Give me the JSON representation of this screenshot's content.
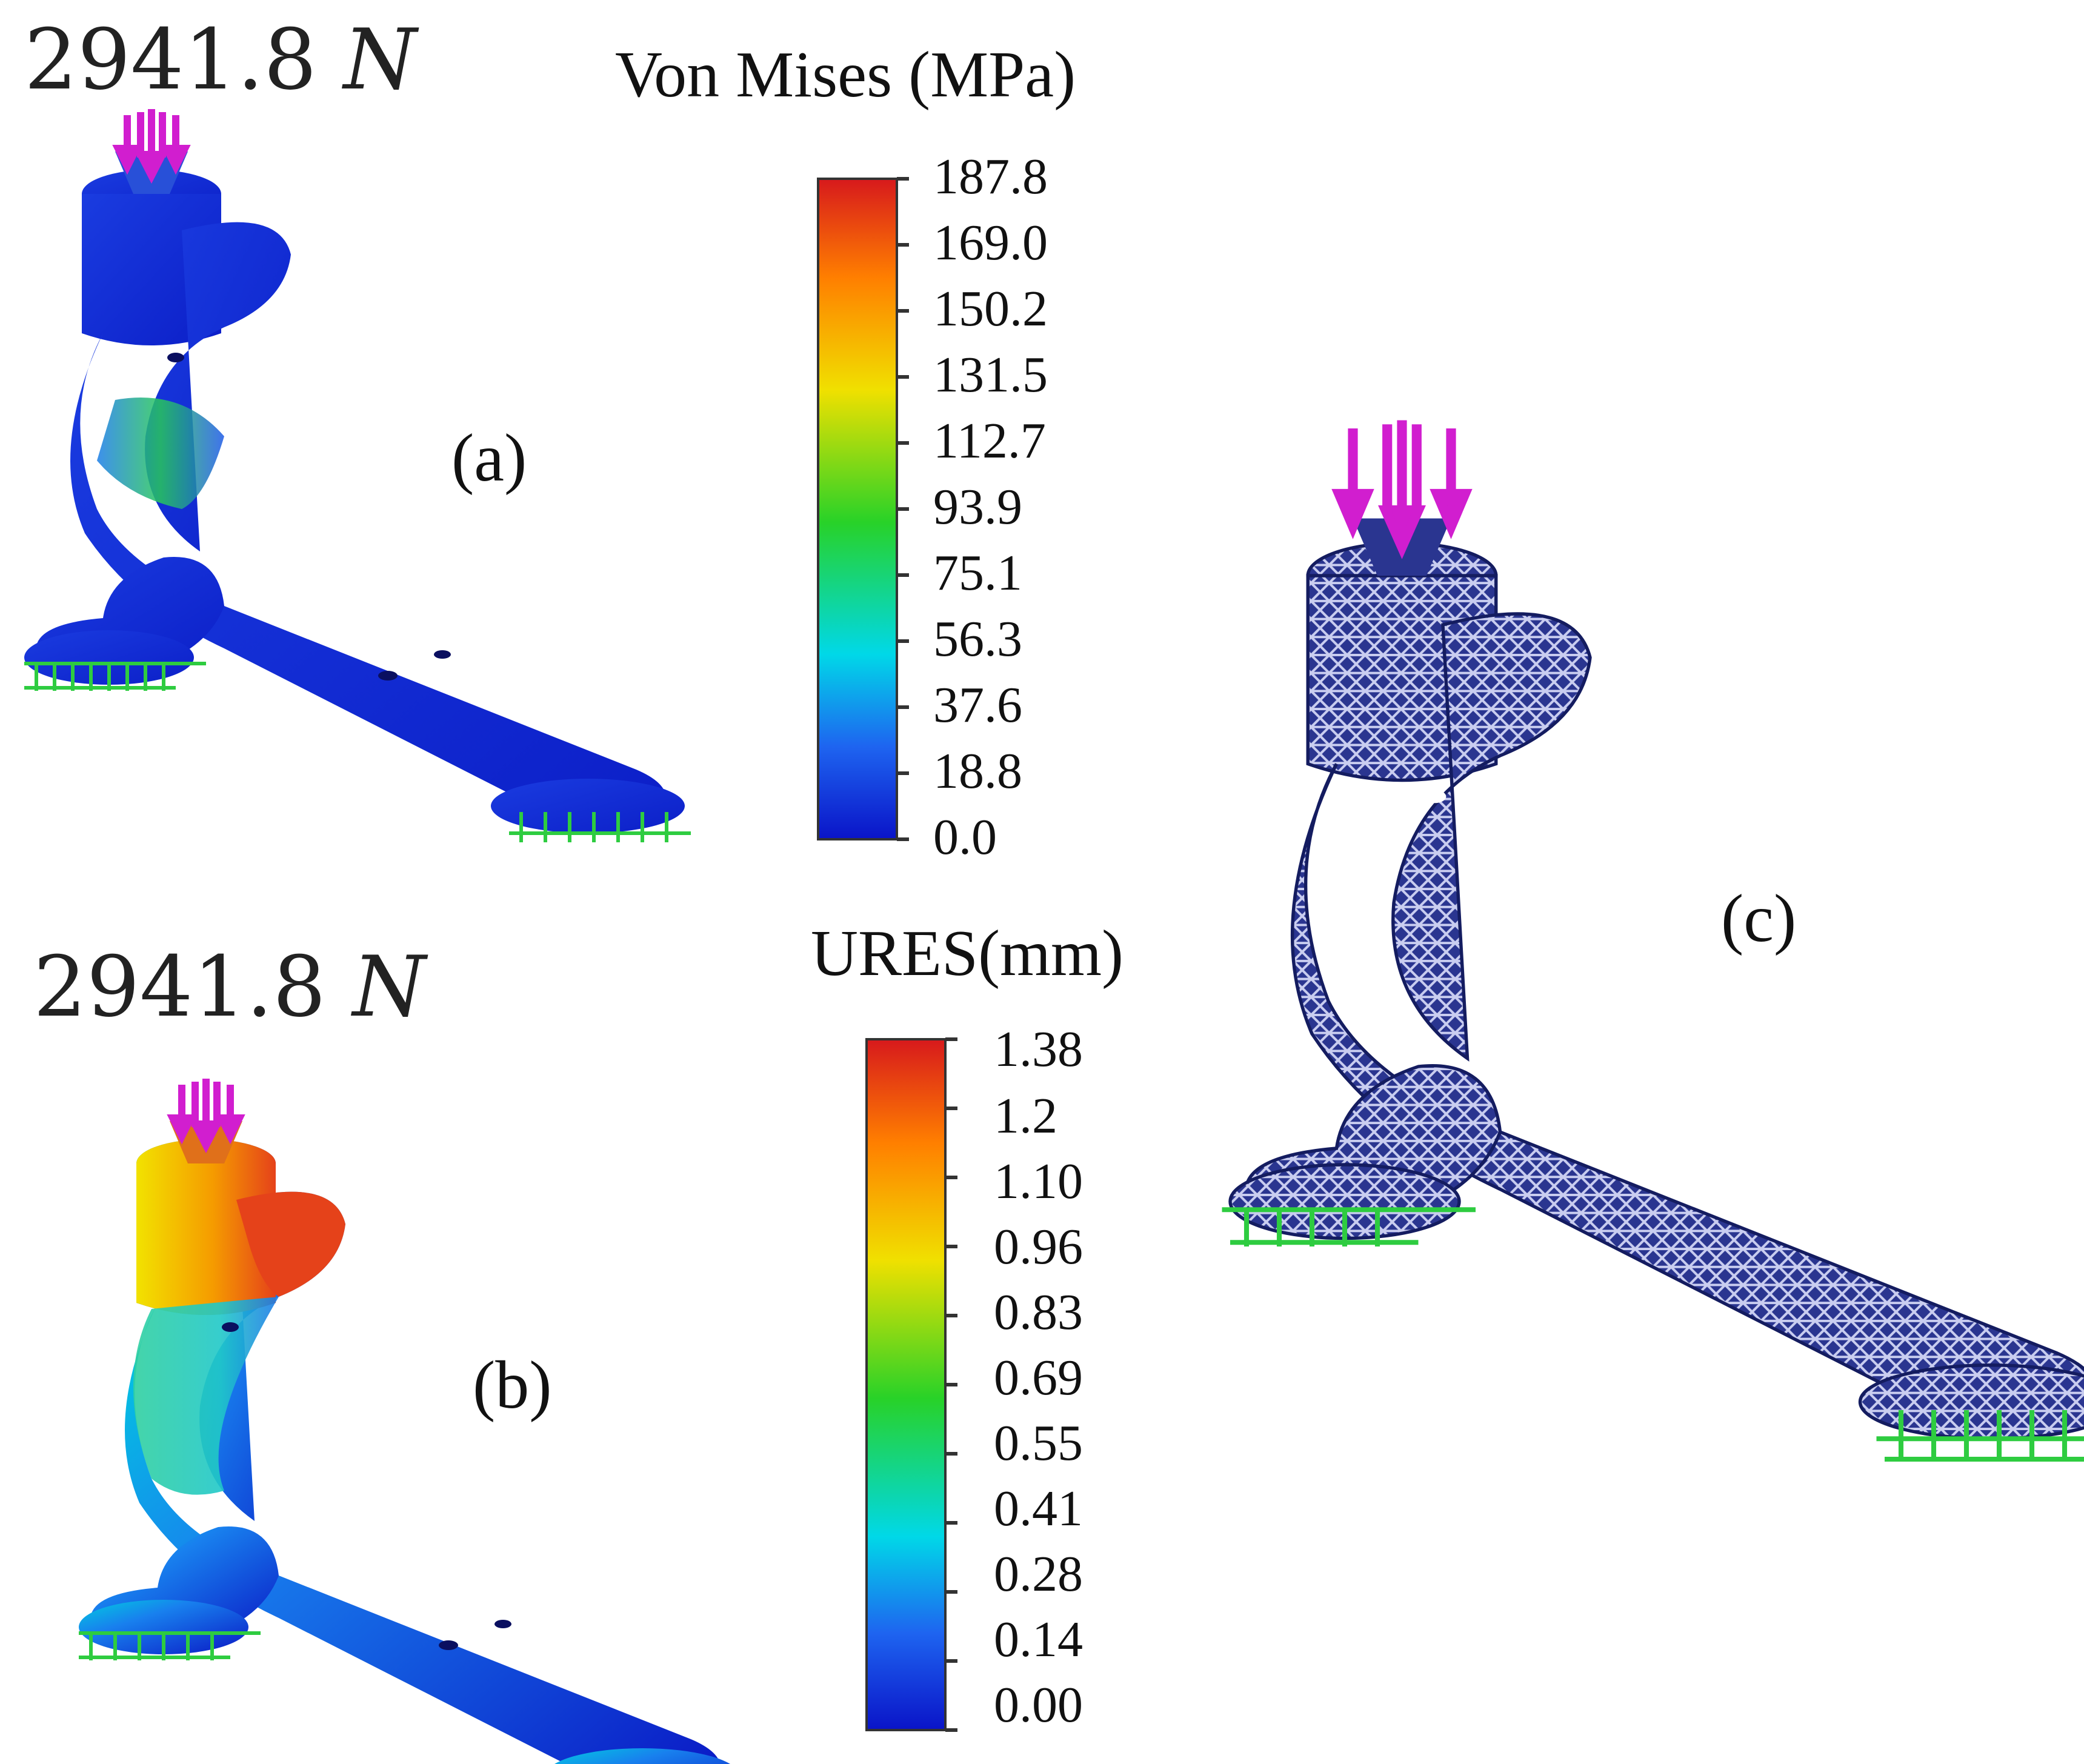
{
  "panel_a": {
    "load_value": "2941.8",
    "load_unit": "N",
    "label": "(a)",
    "legend": {
      "title": "Von Mises (MPa)",
      "ticks": [
        "187.8",
        "169.0",
        "150.2",
        "131.5",
        "112.7",
        "93.9",
        "75.1",
        "56.3",
        "37.6",
        "18.8",
        "0.0"
      ]
    }
  },
  "panel_b": {
    "load_value": "2941.8",
    "load_unit": "N",
    "label": "(b)",
    "legend": {
      "title": "URES(mm)",
      "ticks": [
        "1.38",
        "1.2",
        "1.10",
        "0.96",
        "0.83",
        "0.69",
        "0.55",
        "0.41",
        "0.28",
        "0.14",
        "0.00"
      ]
    }
  },
  "panel_c": {
    "label": "(c)"
  },
  "colors": {
    "load_arrow": "#d11ecf",
    "fixture": "#2ecc40",
    "mesh_body": "#24338f",
    "colormap": [
      "#d7191c",
      "#ff7f00",
      "#f0e000",
      "#28d228",
      "#00d8e8",
      "#1e64f0",
      "#0a14c8"
    ]
  }
}
